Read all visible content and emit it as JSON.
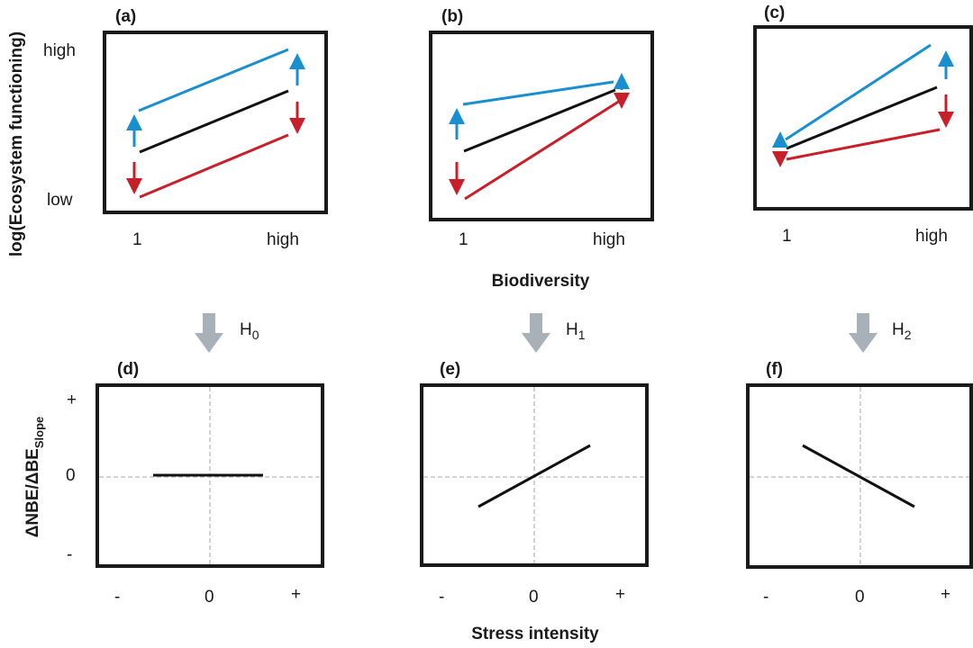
{
  "top": {
    "panels": [
      {
        "label": "(a)"
      },
      {
        "label": "(b)"
      },
      {
        "label": "(c)"
      }
    ],
    "ylabel": "log(Ecosystem functioning)",
    "yticks": [
      "high",
      "low"
    ],
    "xticks": [
      "1",
      "high"
    ],
    "xlabel": "Biodiversity"
  },
  "hypotheses": [
    {
      "base": "H",
      "sub": "0"
    },
    {
      "base": "H",
      "sub": "1"
    },
    {
      "base": "H",
      "sub": "2"
    }
  ],
  "bottom": {
    "panels": [
      {
        "label": "(d)"
      },
      {
        "label": "(e)"
      },
      {
        "label": "(f)"
      }
    ],
    "ylabel": "ΔNBE/ΔBE",
    "ylabel_sub": "Slope",
    "yticks": [
      "+",
      "0",
      "-"
    ],
    "xticks": [
      "-",
      "0",
      "+"
    ],
    "xlabel": "Stress intensity"
  },
  "colors": {
    "increase": "#1a8fd0",
    "baseline": "#111111",
    "decrease": "#c8202a",
    "hyp_arrow": "#a9b1b8"
  }
}
